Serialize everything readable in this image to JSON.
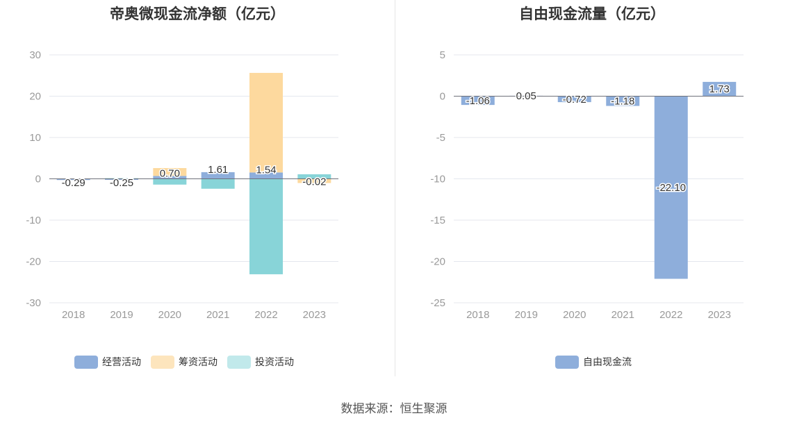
{
  "charts": [
    {
      "title": "帝奥微现金流净额（亿元）",
      "legend": [
        "经营活动",
        "筹资活动",
        "投资活动"
      ]
    },
    {
      "title": "自由现金流量（亿元）",
      "legend": [
        "自由现金流"
      ]
    }
  ],
  "source": "数据来源：恒生聚源",
  "colors": {
    "operating": "#8eaedb",
    "financing": "#fdd99e",
    "investing": "#88d4d8",
    "fcf": "#8eaedb",
    "grid": "#e4e7ee",
    "tick": "#999999",
    "label": "#333333"
  },
  "chart_data": [
    {
      "type": "bar",
      "stacked": true,
      "title": "帝奥微现金流净额（亿元）",
      "categories": [
        "2018",
        "2019",
        "2020",
        "2021",
        "2022",
        "2023"
      ],
      "ylim": [
        -30,
        30
      ],
      "yticks": [
        "30",
        "20",
        "10",
        "0",
        "-10",
        "-20",
        "-30"
      ],
      "grid": true,
      "legend_position": "bottom",
      "series": [
        {
          "name": "经营活动",
          "values": [
            -0.29,
            -0.25,
            0.7,
            1.61,
            1.54,
            -0.02
          ]
        },
        {
          "name": "筹资活动",
          "values": [
            0,
            0,
            1.9,
            0,
            24.1,
            -1.0
          ]
        },
        {
          "name": "投资活动",
          "values": [
            0,
            0.15,
            -1.4,
            -2.4,
            -23.1,
            1.1
          ]
        }
      ],
      "data_labels": [
        "-0.29",
        "-0.25",
        "0.70",
        "1.61",
        "1.54",
        "-0.02"
      ]
    },
    {
      "type": "bar",
      "title": "自由现金流量（亿元）",
      "categories": [
        "2018",
        "2019",
        "2020",
        "2021",
        "2022",
        "2023"
      ],
      "ylim": [
        -25,
        5
      ],
      "yticks": [
        "5",
        "0",
        "-5",
        "-10",
        "-15",
        "-20",
        "-25"
      ],
      "grid": true,
      "legend_position": "bottom",
      "series": [
        {
          "name": "自由现金流",
          "values": [
            -1.06,
            0.05,
            -0.72,
            -1.18,
            -22.1,
            1.73
          ]
        }
      ],
      "data_labels": [
        "-1.06",
        "0.05",
        "-0.72",
        "-1.18",
        "-22.10",
        "1.73"
      ]
    }
  ]
}
